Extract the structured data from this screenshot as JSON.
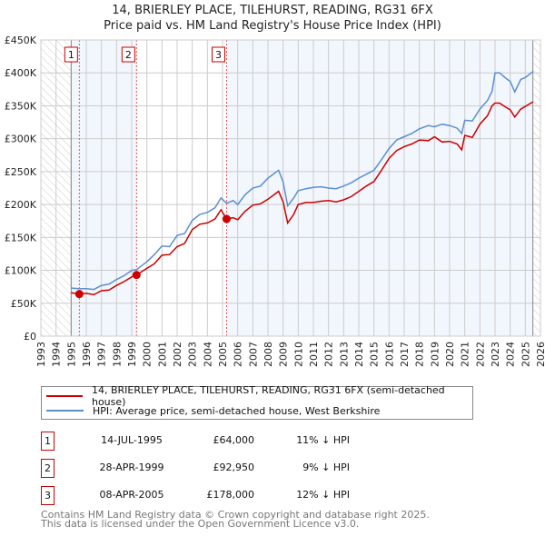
{
  "title_line1": "14, BRIERLEY PLACE, TILEHURST, READING, RG31 6FX",
  "title_line2": "Price paid vs. HM Land Registry's House Price Index (HPI)",
  "chart_data": {
    "type": "line",
    "xlim": [
      1993,
      2026
    ],
    "ylim": [
      0,
      450000
    ],
    "yticks": [
      0,
      50000,
      100000,
      150000,
      200000,
      250000,
      300000,
      350000,
      400000,
      450000
    ],
    "ytick_labels": [
      "£0",
      "£50K",
      "£100K",
      "£150K",
      "£200K",
      "£250K",
      "£300K",
      "£350K",
      "£400K",
      "£450K"
    ],
    "xticks": [
      1993,
      1994,
      1995,
      1996,
      1997,
      1998,
      1999,
      2000,
      2001,
      2002,
      2003,
      2004,
      2005,
      2006,
      2007,
      2008,
      2009,
      2010,
      2011,
      2012,
      2013,
      2014,
      2015,
      2016,
      2017,
      2018,
      2019,
      2020,
      2021,
      2022,
      2023,
      2024,
      2025,
      2026
    ],
    "data_start": 1995.0,
    "data_end": 2025.5,
    "grid": true,
    "legend_placement": "below",
    "series": [
      {
        "name": "14, BRIERLEY PLACE, TILEHURST, READING, RG31 6FX (semi-detached house)",
        "color": "#cc0000",
        "x": [
          1995.0,
          1995.54,
          1996.0,
          1996.5,
          1997.0,
          1997.5,
          1998.0,
          1998.5,
          1999.0,
          1999.32,
          2000.0,
          2000.5,
          2001.0,
          2001.5,
          2002.0,
          2002.5,
          2003.0,
          2003.5,
          2004.0,
          2004.5,
          2004.9,
          2005.27,
          2005.7,
          2006.0,
          2006.5,
          2007.0,
          2007.5,
          2008.0,
          2008.7,
          2009.0,
          2009.3,
          2009.7,
          2010.0,
          2010.5,
          2011.0,
          2011.5,
          2012.0,
          2012.5,
          2013.0,
          2013.5,
          2014.0,
          2014.5,
          2015.0,
          2015.5,
          2016.0,
          2016.5,
          2017.0,
          2017.5,
          2018.0,
          2018.6,
          2019.0,
          2019.5,
          2020.0,
          2020.5,
          2020.8,
          2021.0,
          2021.5,
          2022.0,
          2022.5,
          2022.8,
          2023.0,
          2023.3,
          2023.7,
          2024.0,
          2024.3,
          2024.7,
          2025.0,
          2025.5
        ],
        "y": [
          66000,
          64000,
          65000,
          63000,
          69000,
          70000,
          77000,
          83000,
          90000,
          92950,
          103000,
          110000,
          123000,
          124000,
          136000,
          141000,
          162000,
          170000,
          172000,
          178000,
          192000,
          178000,
          180000,
          177000,
          190000,
          199000,
          201000,
          208000,
          220000,
          204000,
          172000,
          185000,
          200000,
          203000,
          203000,
          205000,
          206000,
          204000,
          207000,
          212000,
          220000,
          228000,
          235000,
          252000,
          270000,
          282000,
          288000,
          292000,
          298000,
          297000,
          303000,
          295000,
          296000,
          292000,
          283000,
          305000,
          302000,
          322000,
          335000,
          350000,
          354000,
          354000,
          348000,
          344000,
          333000,
          345000,
          349000,
          356000
        ]
      },
      {
        "name": "HPI: Average price, semi-detached house, West Berkshire",
        "color": "#5b8fd0",
        "x": [
          1995.0,
          1995.5,
          1996.0,
          1996.5,
          1997.0,
          1997.5,
          1998.0,
          1998.5,
          1999.0,
          1999.32,
          2000.0,
          2000.5,
          2001.0,
          2001.5,
          2002.0,
          2002.5,
          2003.0,
          2003.5,
          2004.0,
          2004.5,
          2004.9,
          2005.27,
          2005.7,
          2006.0,
          2006.5,
          2007.0,
          2007.5,
          2008.0,
          2008.7,
          2009.0,
          2009.3,
          2009.7,
          2010.0,
          2010.5,
          2011.0,
          2011.5,
          2012.0,
          2012.5,
          2013.0,
          2013.5,
          2014.0,
          2014.5,
          2015.0,
          2015.5,
          2016.0,
          2016.5,
          2017.0,
          2017.5,
          2018.0,
          2018.6,
          2019.0,
          2019.5,
          2020.0,
          2020.5,
          2020.8,
          2021.0,
          2021.5,
          2022.0,
          2022.5,
          2022.8,
          2023.0,
          2023.3,
          2023.7,
          2024.0,
          2024.3,
          2024.7,
          2025.0,
          2025.5
        ],
        "y": [
          73000,
          72000,
          72000,
          71000,
          77000,
          79000,
          86000,
          92000,
          100000,
          101000,
          113000,
          124000,
          137000,
          136000,
          153000,
          156000,
          176000,
          185000,
          188000,
          195000,
          210000,
          202000,
          206000,
          200000,
          215000,
          225000,
          228000,
          240000,
          252000,
          234000,
          198000,
          210000,
          221000,
          224000,
          226000,
          227000,
          225000,
          224000,
          228000,
          233000,
          240000,
          246000,
          252000,
          268000,
          285000,
          298000,
          303000,
          308000,
          315000,
          320000,
          318000,
          322000,
          320000,
          316000,
          308000,
          328000,
          327000,
          345000,
          358000,
          372000,
          400000,
          400000,
          392000,
          387000,
          371000,
          390000,
          393000,
          402000
        ]
      }
    ],
    "sales": [
      {
        "label": "1",
        "x": 1995.54,
        "price": 64000
      },
      {
        "label": "2",
        "x": 1999.32,
        "price": 92950
      },
      {
        "label": "3",
        "x": 2005.27,
        "price": 178000
      }
    ]
  },
  "legend": {
    "property": "14, BRIERLEY PLACE, TILEHURST, READING, RG31 6FX (semi-detached house)",
    "hpi": "HPI: Average price, semi-detached house, West Berkshire"
  },
  "transactions": [
    {
      "num": "1",
      "date": "14-JUL-1995",
      "price": "£64,000",
      "hpi": "11% ↓ HPI"
    },
    {
      "num": "2",
      "date": "28-APR-1999",
      "price": "£92,950",
      "hpi": "9% ↓ HPI"
    },
    {
      "num": "3",
      "date": "08-APR-2005",
      "price": "£178,000",
      "hpi": "12% ↓ HPI"
    }
  ],
  "footer": {
    "line1": "Contains HM Land Registry data © Crown copyright and database right 2025.",
    "line2": "This data is licensed under the Open Government Licence v3.0."
  }
}
